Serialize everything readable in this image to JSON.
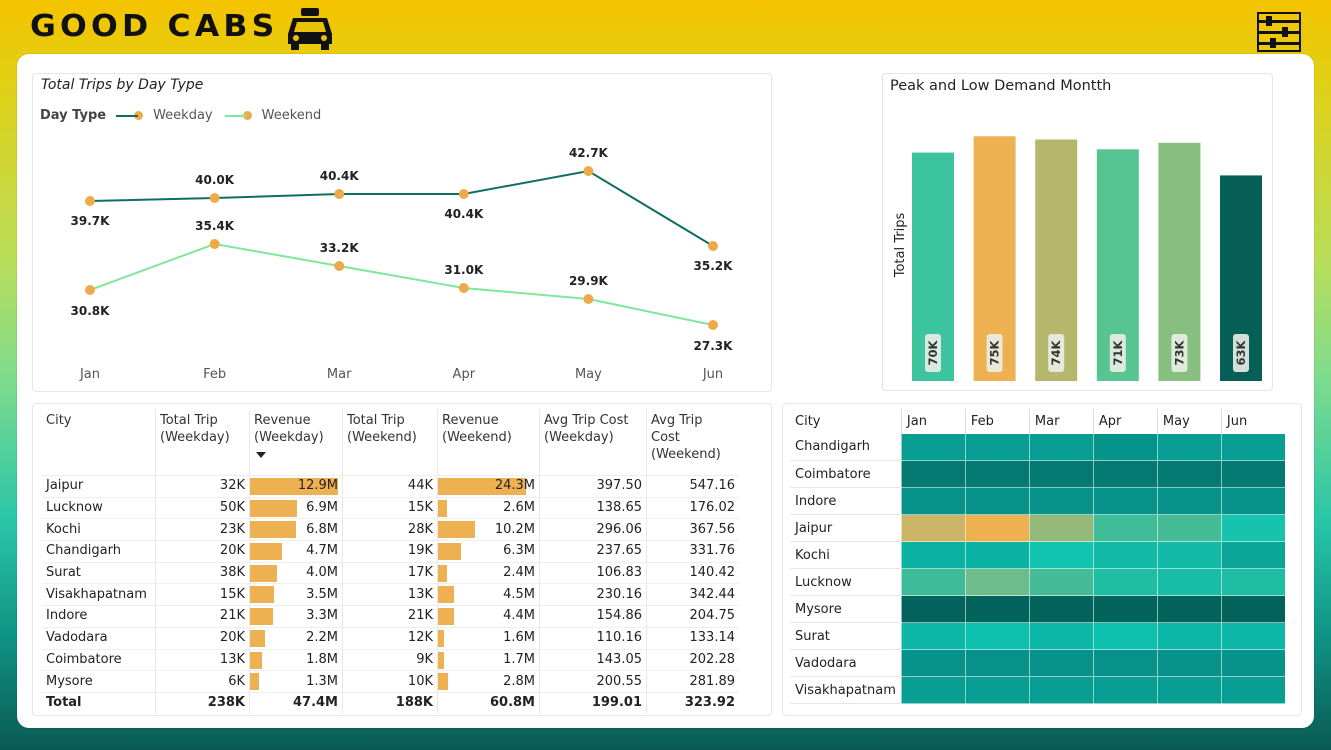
{
  "brand": {
    "title": "GOOD CABS"
  },
  "icons": {
    "logo": "taxi-icon",
    "menu": "sliders-icon"
  },
  "colors": {
    "weekday": "#0f6e62",
    "weekend": "#7ee89a",
    "marker": "#eeaa48",
    "revenue_bar": "#eeb152"
  },
  "line_chart": {
    "title": "Total Trips by Day Type",
    "legend_title": "Day Type",
    "legend": [
      "Weekday",
      "Weekend"
    ]
  },
  "bar_chart": {
    "title": "Peak and Low Demand Montth",
    "ylabel": "Total Trips"
  },
  "chart_data": [
    {
      "type": "line",
      "title": "Total Trips by Day Type",
      "categories": [
        "Jan",
        "Feb",
        "Mar",
        "Apr",
        "May",
        "Jun"
      ],
      "series": [
        {
          "name": "Weekday",
          "values": [
            39.7,
            40.0,
            40.4,
            40.4,
            42.7,
            35.2
          ],
          "labels": [
            "39.7K",
            "40.0K",
            "40.4K",
            "40.4K",
            "42.7K",
            "35.2K"
          ]
        },
        {
          "name": "Weekend",
          "values": [
            30.8,
            35.4,
            33.2,
            31.0,
            29.9,
            27.3
          ],
          "labels": [
            "30.8K",
            "35.4K",
            "33.2K",
            "31.0K",
            "29.9K",
            "27.3K"
          ]
        }
      ],
      "ylim": [
        24,
        46
      ]
    },
    {
      "type": "bar",
      "title": "Peak and Low Demand Montth",
      "ylabel": "Total Trips",
      "categories": [
        "Jan",
        "Feb",
        "Mar",
        "Apr",
        "May",
        "Jun"
      ],
      "values": [
        70,
        75,
        74,
        71,
        73,
        63
      ],
      "labels": [
        "70K",
        "75K",
        "74K",
        "71K",
        "73K",
        "63K"
      ],
      "colors": [
        "#3bc49e",
        "#eeb152",
        "#b5b86c",
        "#58c491",
        "#86bf7f",
        "#065f57"
      ],
      "ylim": [
        0,
        76
      ]
    }
  ],
  "trip_table": {
    "headers": [
      "City",
      "Total Trip (Weekday)",
      "Revenue (Weekday)",
      "Total Trip (Weekend)",
      "Revenue (Weekend)",
      "Avg Trip Cost (Weekday)",
      "Avg Trip Cost (Weekend)"
    ],
    "rows": [
      {
        "city": "Jaipur",
        "trip_wd": "32K",
        "rev_wd": "12.9M",
        "rev_wd_val": 12.9,
        "trip_we": "44K",
        "rev_we": "24.3M",
        "rev_we_val": 24.3,
        "avg_wd": "397.50",
        "avg_we": "547.16"
      },
      {
        "city": "Lucknow",
        "trip_wd": "50K",
        "rev_wd": "6.9M",
        "rev_wd_val": 6.9,
        "trip_we": "15K",
        "rev_we": "2.6M",
        "rev_we_val": 2.6,
        "avg_wd": "138.65",
        "avg_we": "176.02"
      },
      {
        "city": "Kochi",
        "trip_wd": "23K",
        "rev_wd": "6.8M",
        "rev_wd_val": 6.8,
        "trip_we": "28K",
        "rev_we": "10.2M",
        "rev_we_val": 10.2,
        "avg_wd": "296.06",
        "avg_we": "367.56"
      },
      {
        "city": "Chandigarh",
        "trip_wd": "20K",
        "rev_wd": "4.7M",
        "rev_wd_val": 4.7,
        "trip_we": "19K",
        "rev_we": "6.3M",
        "rev_we_val": 6.3,
        "avg_wd": "237.65",
        "avg_we": "331.76"
      },
      {
        "city": "Surat",
        "trip_wd": "38K",
        "rev_wd": "4.0M",
        "rev_wd_val": 4.0,
        "trip_we": "17K",
        "rev_we": "2.4M",
        "rev_we_val": 2.4,
        "avg_wd": "106.83",
        "avg_we": "140.42"
      },
      {
        "city": "Visakhapatnam",
        "trip_wd": "15K",
        "rev_wd": "3.5M",
        "rev_wd_val": 3.5,
        "trip_we": "13K",
        "rev_we": "4.5M",
        "rev_we_val": 4.5,
        "avg_wd": "230.16",
        "avg_we": "342.44"
      },
      {
        "city": "Indore",
        "trip_wd": "21K",
        "rev_wd": "3.3M",
        "rev_wd_val": 3.3,
        "trip_we": "21K",
        "rev_we": "4.4M",
        "rev_we_val": 4.4,
        "avg_wd": "154.86",
        "avg_we": "204.75"
      },
      {
        "city": "Vadodara",
        "trip_wd": "20K",
        "rev_wd": "2.2M",
        "rev_wd_val": 2.2,
        "trip_we": "12K",
        "rev_we": "1.6M",
        "rev_we_val": 1.6,
        "avg_wd": "110.16",
        "avg_we": "133.14"
      },
      {
        "city": "Coimbatore",
        "trip_wd": "13K",
        "rev_wd": "1.8M",
        "rev_wd_val": 1.8,
        "trip_we": "9K",
        "rev_we": "1.7M",
        "rev_we_val": 1.7,
        "avg_wd": "143.05",
        "avg_we": "202.28"
      },
      {
        "city": "Mysore",
        "trip_wd": "6K",
        "rev_wd": "1.3M",
        "rev_wd_val": 1.3,
        "trip_we": "10K",
        "rev_we": "2.8M",
        "rev_we_val": 2.8,
        "avg_wd": "200.55",
        "avg_we": "281.89"
      }
    ],
    "total": {
      "city": "Total",
      "trip_wd": "238K",
      "rev_wd": "47.4M",
      "trip_we": "188K",
      "rev_we": "60.8M",
      "avg_wd": "199.01",
      "avg_we": "323.92"
    }
  },
  "heatmap": {
    "headers": [
      "City",
      "Jan",
      "Feb",
      "Mar",
      "Apr",
      "May",
      "Jun"
    ],
    "rows": [
      {
        "city": "Chandigarh",
        "colors": [
          "#089e93",
          "#089e93",
          "#089e93",
          "#06938a",
          "#089e93",
          "#089e93"
        ]
      },
      {
        "city": "Coimbatore",
        "colors": [
          "#057a72",
          "#057a72",
          "#057a72",
          "#057a72",
          "#057a72",
          "#057a72"
        ]
      },
      {
        "city": "Indore",
        "colors": [
          "#07938a",
          "#07938a",
          "#07938a",
          "#07938a",
          "#07938a",
          "#07938a"
        ]
      },
      {
        "city": "Jaipur",
        "colors": [
          "#cdb567",
          "#eeb152",
          "#93b877",
          "#3fbc98",
          "#45bb96",
          "#16c4ad"
        ]
      },
      {
        "city": "Kochi",
        "colors": [
          "#0ab2a3",
          "#0ab2a3",
          "#10c4b0",
          "#12baa7",
          "#12baa7",
          "#0aa597"
        ]
      },
      {
        "city": "Lucknow",
        "colors": [
          "#3dbb98",
          "#6dbd8c",
          "#45bb96",
          "#20bda5",
          "#18bda8",
          "#20bda5"
        ]
      },
      {
        "city": "Mysore",
        "colors": [
          "#04625c",
          "#04625c",
          "#04625c",
          "#04625c",
          "#04625c",
          "#04625c"
        ]
      },
      {
        "city": "Surat",
        "colors": [
          "#0cb7a7",
          "#0dc0ad",
          "#0cb7a7",
          "#0dc0ad",
          "#0cb7a7",
          "#0cb7a7"
        ]
      },
      {
        "city": "Vadodara",
        "colors": [
          "#07938a",
          "#07938a",
          "#07938a",
          "#07938a",
          "#07938a",
          "#07938a"
        ]
      },
      {
        "city": "Visakhapatnam",
        "colors": [
          "#089e93",
          "#089e93",
          "#089e93",
          "#089e93",
          "#089e93",
          "#089e93"
        ]
      }
    ]
  }
}
